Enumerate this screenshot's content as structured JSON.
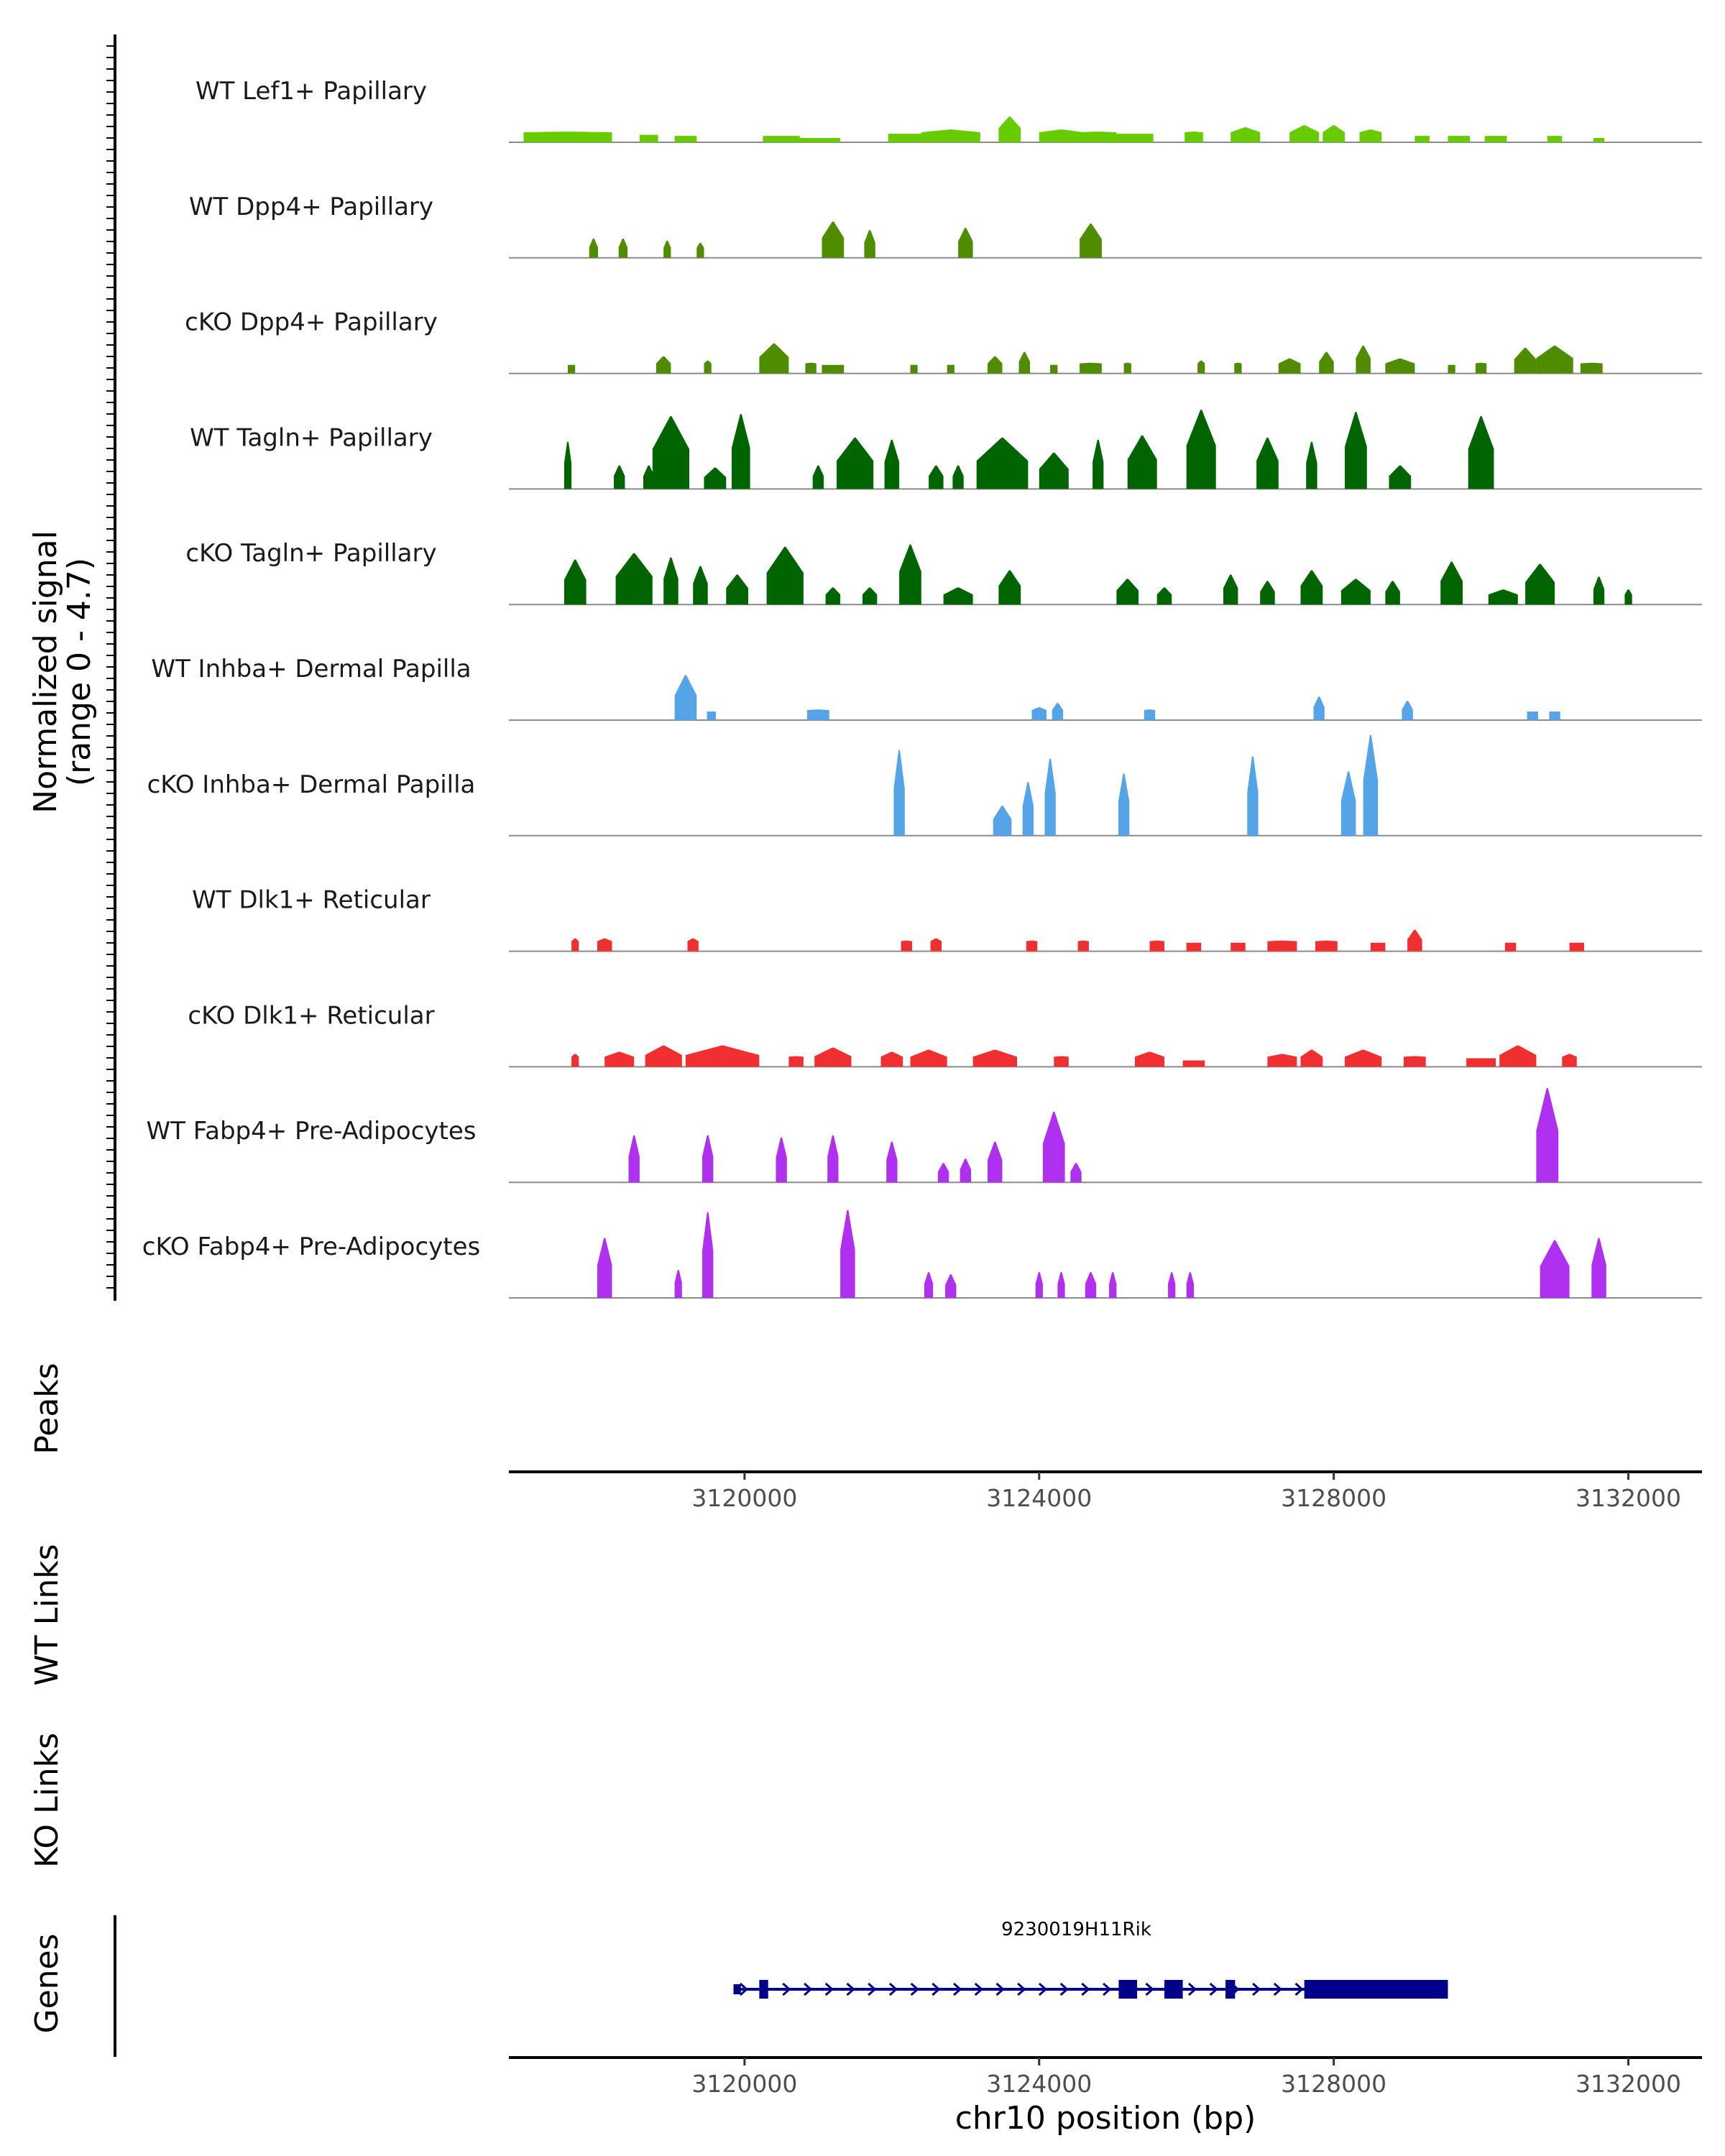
{
  "chart_data": {
    "type": "area",
    "title": "",
    "ylabel_line1": "Normalized signal",
    "ylabel_line2": "(range 0 - 4.7)",
    "y_range": [
      0,
      4.7
    ],
    "x_range": [
      3116800,
      3133000
    ],
    "xlabel": "chr10 position (bp)",
    "x_ticks": [
      3120000,
      3124000,
      3128000,
      3132000
    ],
    "x_tick_labels": [
      "3120000",
      "3124000",
      "3128000",
      "3132000"
    ],
    "track_labels": {
      "peaks": "Peaks",
      "wt_links": "WT Links",
      "ko_links": "KO Links",
      "genes": "Genes"
    },
    "gene": {
      "name": "9230019H11Rik",
      "start": 3119850,
      "end": 3129550,
      "strand": "+",
      "exons": [
        {
          "start": 3119850,
          "end": 3119950
        },
        {
          "start": 3120200,
          "end": 3120320
        },
        {
          "start": 3125080,
          "end": 3125330
        },
        {
          "start": 3125700,
          "end": 3125950
        },
        {
          "start": 3126530,
          "end": 3126660
        },
        {
          "start": 3127600,
          "end": 3129550
        }
      ]
    },
    "series": [
      {
        "name": "WT Lef1+ Papillary",
        "color": "#66cc00",
        "peaks": [
          [
            3117600,
            0.5,
            1200
          ],
          [
            3118700,
            0.35,
            250
          ],
          [
            3119200,
            0.3,
            300
          ],
          [
            3120500,
            0.3,
            500
          ],
          [
            3121000,
            0.2,
            600
          ],
          [
            3122200,
            0.4,
            500
          ],
          [
            3122800,
            0.6,
            800
          ],
          [
            3123600,
            1.2,
            300
          ],
          [
            3124300,
            0.6,
            600
          ],
          [
            3124800,
            0.5,
            500
          ],
          [
            3125300,
            0.4,
            500
          ],
          [
            3126100,
            0.5,
            250
          ],
          [
            3126800,
            0.7,
            400
          ],
          [
            3127600,
            0.8,
            400
          ],
          [
            3128000,
            0.8,
            300
          ],
          [
            3128500,
            0.6,
            300
          ],
          [
            3129200,
            0.3,
            200
          ],
          [
            3129700,
            0.3,
            300
          ],
          [
            3130200,
            0.3,
            300
          ],
          [
            3131000,
            0.3,
            200
          ],
          [
            3131600,
            0.2,
            150
          ]
        ]
      },
      {
        "name": "WT Dpp4+ Papillary",
        "color": "#4f8c00",
        "peaks": [
          [
            3117950,
            0.9,
            120
          ],
          [
            3118350,
            0.9,
            120
          ],
          [
            3118950,
            0.8,
            100
          ],
          [
            3119400,
            0.7,
            100
          ],
          [
            3121200,
            1.7,
            300
          ],
          [
            3121700,
            1.3,
            150
          ],
          [
            3123000,
            1.4,
            200
          ],
          [
            3124700,
            1.6,
            300
          ]
        ]
      },
      {
        "name": "cKO Dpp4+ Papillary",
        "color": "#4f8c00",
        "peaks": [
          [
            3117650,
            0.4,
            100
          ],
          [
            3118900,
            0.8,
            200
          ],
          [
            3119500,
            0.6,
            100
          ],
          [
            3120400,
            1.4,
            400
          ],
          [
            3120900,
            0.5,
            150
          ],
          [
            3121200,
            0.4,
            300
          ],
          [
            3122300,
            0.4,
            100
          ],
          [
            3122800,
            0.4,
            100
          ],
          [
            3123400,
            0.8,
            200
          ],
          [
            3123800,
            1.0,
            150
          ],
          [
            3124200,
            0.4,
            100
          ],
          [
            3124700,
            0.5,
            300
          ],
          [
            3125200,
            0.5,
            100
          ],
          [
            3126200,
            0.6,
            100
          ],
          [
            3126700,
            0.5,
            100
          ],
          [
            3127400,
            0.7,
            300
          ],
          [
            3127900,
            1.0,
            200
          ],
          [
            3128400,
            1.3,
            200
          ],
          [
            3128900,
            0.7,
            400
          ],
          [
            3129600,
            0.4,
            100
          ],
          [
            3130000,
            0.5,
            150
          ],
          [
            3130600,
            1.2,
            300
          ],
          [
            3131000,
            1.3,
            500
          ],
          [
            3131500,
            0.5,
            300
          ]
        ]
      },
      {
        "name": "WT Tagln+ Papillary",
        "color": "#006400",
        "peaks": [
          [
            3117600,
            2.2,
            100
          ],
          [
            3118300,
            1.1,
            150
          ],
          [
            3118700,
            1.1,
            150
          ],
          [
            3119000,
            3.4,
            500
          ],
          [
            3119600,
            1.0,
            300
          ],
          [
            3119950,
            3.5,
            250
          ],
          [
            3121000,
            1.1,
            150
          ],
          [
            3121500,
            2.4,
            500
          ],
          [
            3122000,
            2.3,
            200
          ],
          [
            3122600,
            1.1,
            200
          ],
          [
            3122900,
            1.1,
            150
          ],
          [
            3123500,
            2.4,
            700
          ],
          [
            3124200,
            1.7,
            400
          ],
          [
            3124800,
            2.3,
            150
          ],
          [
            3125400,
            2.5,
            400
          ],
          [
            3126200,
            3.7,
            400
          ],
          [
            3127100,
            2.4,
            300
          ],
          [
            3127700,
            2.2,
            150
          ],
          [
            3128300,
            3.6,
            300
          ],
          [
            3128900,
            1.1,
            300
          ],
          [
            3130000,
            3.4,
            350
          ]
        ]
      },
      {
        "name": "cKO Tagln+ Papillary",
        "color": "#006400",
        "peaks": [
          [
            3117700,
            2.1,
            300
          ],
          [
            3118500,
            2.4,
            500
          ],
          [
            3119000,
            2.2,
            200
          ],
          [
            3119400,
            1.8,
            200
          ],
          [
            3119900,
            1.4,
            300
          ],
          [
            3120550,
            2.7,
            500
          ],
          [
            3121200,
            0.8,
            200
          ],
          [
            3121700,
            0.8,
            200
          ],
          [
            3122250,
            2.8,
            300
          ],
          [
            3122900,
            0.8,
            400
          ],
          [
            3123600,
            1.6,
            300
          ],
          [
            3125200,
            1.2,
            300
          ],
          [
            3125700,
            0.8,
            200
          ],
          [
            3126600,
            1.4,
            200
          ],
          [
            3127100,
            1.1,
            200
          ],
          [
            3127700,
            1.6,
            300
          ],
          [
            3128300,
            1.2,
            400
          ],
          [
            3128800,
            1.1,
            200
          ],
          [
            3129600,
            2.0,
            300
          ],
          [
            3130300,
            0.7,
            400
          ],
          [
            3130800,
            1.9,
            400
          ],
          [
            3131600,
            1.3,
            150
          ],
          [
            3132000,
            0.7,
            100
          ]
        ]
      },
      {
        "name": "WT Inhba+ Dermal Papilla",
        "color": "#56a4e8",
        "peaks": [
          [
            3119200,
            2.1,
            300
          ],
          [
            3119550,
            0.4,
            120
          ],
          [
            3121000,
            0.5,
            300
          ],
          [
            3124000,
            0.6,
            200
          ],
          [
            3124250,
            0.8,
            150
          ],
          [
            3125500,
            0.5,
            150
          ],
          [
            3127800,
            1.1,
            150
          ],
          [
            3129000,
            0.9,
            150
          ],
          [
            3130700,
            0.4,
            150
          ],
          [
            3131000,
            0.4,
            150
          ]
        ]
      },
      {
        "name": "cKO Inhba+ Dermal Papilla",
        "color": "#56a4e8",
        "peaks": [
          [
            3122100,
            4.0,
            150
          ],
          [
            3123500,
            1.4,
            250
          ],
          [
            3123850,
            2.5,
            150
          ],
          [
            3124150,
            3.6,
            150
          ],
          [
            3125150,
            2.9,
            150
          ],
          [
            3126900,
            3.7,
            150
          ],
          [
            3128200,
            3.0,
            200
          ],
          [
            3128500,
            4.7,
            200
          ]
        ]
      },
      {
        "name": "WT Dlk1+ Reticular",
        "color": "#f03030",
        "peaks": [
          [
            3117700,
            0.6,
            100
          ],
          [
            3118100,
            0.6,
            200
          ],
          [
            3119300,
            0.6,
            150
          ],
          [
            3122200,
            0.5,
            150
          ],
          [
            3122600,
            0.6,
            150
          ],
          [
            3123900,
            0.5,
            150
          ],
          [
            3124600,
            0.5,
            150
          ],
          [
            3125600,
            0.5,
            200
          ],
          [
            3126100,
            0.4,
            200
          ],
          [
            3126700,
            0.4,
            200
          ],
          [
            3127300,
            0.5,
            400
          ],
          [
            3127900,
            0.5,
            300
          ],
          [
            3128600,
            0.4,
            200
          ],
          [
            3129100,
            1.0,
            200
          ],
          [
            3130400,
            0.4,
            150
          ],
          [
            3131300,
            0.4,
            200
          ]
        ]
      },
      {
        "name": "cKO Dlk1+ Reticular",
        "color": "#f03030",
        "peaks": [
          [
            3117700,
            0.6,
            100
          ],
          [
            3118300,
            0.7,
            400
          ],
          [
            3118900,
            1.0,
            500
          ],
          [
            3119700,
            1.0,
            1000
          ],
          [
            3120700,
            0.5,
            200
          ],
          [
            3121200,
            0.9,
            500
          ],
          [
            3122000,
            0.7,
            300
          ],
          [
            3122500,
            0.8,
            500
          ],
          [
            3123400,
            0.8,
            600
          ],
          [
            3124300,
            0.5,
            200
          ],
          [
            3125500,
            0.7,
            400
          ],
          [
            3126100,
            0.3,
            300
          ],
          [
            3127300,
            0.6,
            400
          ],
          [
            3127700,
            0.8,
            300
          ],
          [
            3128400,
            0.8,
            500
          ],
          [
            3129100,
            0.5,
            300
          ],
          [
            3130000,
            0.4,
            400
          ],
          [
            3130500,
            1.0,
            500
          ],
          [
            3131200,
            0.6,
            200
          ]
        ]
      },
      {
        "name": "WT Fabp4+ Pre-Adipocytes",
        "color": "#b030f0",
        "peaks": [
          [
            3118500,
            2.2,
            150
          ],
          [
            3119500,
            2.2,
            150
          ],
          [
            3120500,
            2.1,
            150
          ],
          [
            3121200,
            2.2,
            150
          ],
          [
            3122000,
            1.9,
            150
          ],
          [
            3122700,
            0.9,
            150
          ],
          [
            3123000,
            1.1,
            150
          ],
          [
            3123400,
            1.9,
            200
          ],
          [
            3124200,
            3.3,
            300
          ],
          [
            3124500,
            0.9,
            150
          ],
          [
            3130900,
            4.4,
            300
          ]
        ]
      },
      {
        "name": "cKO Fabp4+ Pre-Adipocytes",
        "color": "#b030f0",
        "peaks": [
          [
            3118100,
            2.8,
            200
          ],
          [
            3119100,
            1.3,
            100
          ],
          [
            3119500,
            4.0,
            150
          ],
          [
            3121400,
            4.1,
            200
          ],
          [
            3122500,
            1.2,
            120
          ],
          [
            3122800,
            1.1,
            150
          ],
          [
            3124000,
            1.2,
            100
          ],
          [
            3124300,
            1.2,
            100
          ],
          [
            3124700,
            1.2,
            150
          ],
          [
            3125000,
            1.2,
            100
          ],
          [
            3125800,
            1.2,
            100
          ],
          [
            3126050,
            1.2,
            100
          ],
          [
            3131000,
            2.7,
            400
          ],
          [
            3131600,
            2.8,
            200
          ]
        ]
      }
    ]
  }
}
